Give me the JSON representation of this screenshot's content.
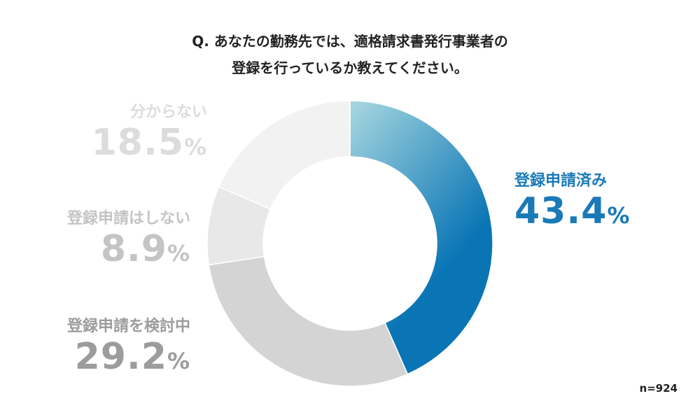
{
  "title": {
    "line1": "Q. あなたの勤務先では、適格請求書発行事業者の",
    "line2": "登録を行っているか教えてください。"
  },
  "sample": "n=924",
  "chart_data": {
    "type": "pie",
    "title": "Q. あなたの勤務先では、適格請求書発行事業者の登録を行っているか教えてください。",
    "unit": "%",
    "slices": [
      {
        "label": "登録申請済み",
        "value": 43.4,
        "display": "43.4",
        "color": "#0a75b5"
      },
      {
        "label": "登録申請を検討中",
        "value": 29.2,
        "display": "29.2",
        "color": "#d4d4d4"
      },
      {
        "label": "登録申請はしない",
        "value": 8.9,
        "display": "8.9",
        "color": "#e8e8e8"
      },
      {
        "label": "分からない",
        "value": 18.5,
        "display": "18.5",
        "color": "#f2f2f2"
      }
    ],
    "gradient_start": "#a8d8e0",
    "label_colors": [
      "#1a7ab8",
      "#9c9c9c",
      "#c4c4c4",
      "#dcdcdc"
    ]
  }
}
